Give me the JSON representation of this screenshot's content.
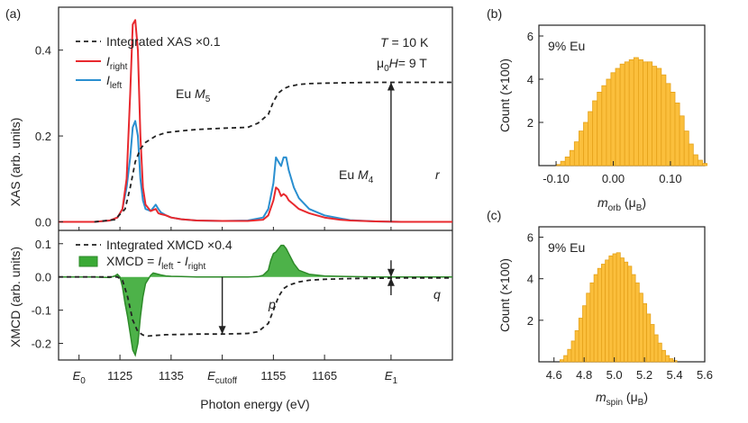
{
  "colors": {
    "right": "#e8292e",
    "left": "#2a8fd0",
    "xmcd": "#3aaa35",
    "hist": "#fbbf3c",
    "hist_edge": "#e5a21a",
    "dash": "#222222"
  },
  "chart_data": [
    {
      "panel": "(a)",
      "type": "line",
      "xlabel": "Photon energy (eV)",
      "xlim": [
        1113,
        1190
      ],
      "x_ticks": [
        {
          "x": 1117,
          "label": "E",
          "sub": "0"
        },
        {
          "x": 1125,
          "label": "1125",
          "sub": ""
        },
        {
          "x": 1135,
          "label": "1135",
          "sub": ""
        },
        {
          "x": 1145,
          "label": "E",
          "sub": "cutoff"
        },
        {
          "x": 1155,
          "label": "1155",
          "sub": ""
        },
        {
          "x": 1165,
          "label": "1165",
          "sub": ""
        },
        {
          "x": 1178,
          "label": "E",
          "sub": "1"
        }
      ],
      "top": {
        "ylabel": "XAS (arb. units)",
        "ylim": [
          -0.02,
          0.5
        ],
        "y_ticks": [
          "0.0",
          "0.2",
          "0.4"
        ],
        "y_tick_values": [
          0,
          0.2,
          0.4
        ],
        "legend": [
          {
            "label": "Integrated XAS ×0.1",
            "sub": "",
            "style": "dash"
          },
          {
            "label": "I",
            "sub": "right",
            "style": "right"
          },
          {
            "label": "I",
            "sub": "left",
            "style": "left"
          }
        ],
        "annotations": {
          "t1": "T",
          "t2": " = 10 K",
          "h1": "μ",
          "h_sub": "0",
          "h2": "H",
          "h3": "= 9 T",
          "m5_text": "Eu ",
          "m5_sym": "M",
          "m5_sub": "5",
          "m4_text": "Eu ",
          "m4_sym": "M",
          "m4_sub": "4",
          "r": "r"
        },
        "series": [
          {
            "style": "right",
            "x": [
              1113,
              1120,
              1123,
              1124.5,
              1125.5,
              1126.3,
              1127,
              1127.5,
              1128,
              1128.5,
              1129,
              1129.5,
              1130,
              1131,
              1132,
              1132.5,
              1133,
              1134,
              1135,
              1137,
              1140,
              1145,
              1150,
              1153,
              1154,
              1155,
              1155.5,
              1156,
              1156.5,
              1157,
              1157.5,
              1158,
              1159,
              1160,
              1162,
              1165,
              1168,
              1170,
              1175,
              1180,
              1190
            ],
            "y": [
              0,
              0,
              0.003,
              0.01,
              0.03,
              0.1,
              0.3,
              0.46,
              0.47,
              0.4,
              0.2,
              0.08,
              0.04,
              0.025,
              0.03,
              0.02,
              0.018,
              0.015,
              0.01,
              0.006,
              0.003,
              0.002,
              0.002,
              0.005,
              0.015,
              0.05,
              0.08,
              0.075,
              0.06,
              0.065,
              0.06,
              0.05,
              0.04,
              0.03,
              0.02,
              0.01,
              0.005,
              0.003,
              0.001,
              0,
              0
            ]
          },
          {
            "style": "left",
            "x": [
              1113,
              1120,
              1123,
              1124.5,
              1125.5,
              1126.3,
              1127,
              1127.5,
              1128,
              1128.5,
              1129,
              1129.5,
              1130,
              1131,
              1132,
              1132.5,
              1133,
              1134,
              1135,
              1137,
              1140,
              1145,
              1150,
              1153,
              1154,
              1155,
              1155.5,
              1156,
              1156.5,
              1157,
              1157.5,
              1158,
              1159,
              1160,
              1162,
              1165,
              1168,
              1170,
              1175,
              1180,
              1190
            ],
            "y": [
              0,
              0,
              0.003,
              0.01,
              0.03,
              0.08,
              0.15,
              0.22,
              0.235,
              0.2,
              0.1,
              0.05,
              0.03,
              0.025,
              0.04,
              0.03,
              0.022,
              0.015,
              0.01,
              0.006,
              0.003,
              0.002,
              0.003,
              0.01,
              0.03,
              0.09,
              0.15,
              0.14,
              0.13,
              0.15,
              0.15,
              0.12,
              0.08,
              0.055,
              0.03,
              0.015,
              0.008,
              0.004,
              0.001,
              0,
              0
            ]
          },
          {
            "style": "dash",
            "x": [
              1120,
              1124,
              1126,
              1127,
              1128,
              1129,
              1130,
              1132,
              1134,
              1137,
              1140,
              1145,
              1150,
              1152,
              1154,
              1155,
              1156,
              1157,
              1158,
              1160,
              1162,
              1165,
              1170,
              1175,
              1180,
              1190
            ],
            "y": [
              0,
              0.005,
              0.03,
              0.08,
              0.14,
              0.17,
              0.185,
              0.2,
              0.208,
              0.212,
              0.215,
              0.218,
              0.22,
              0.23,
              0.25,
              0.28,
              0.3,
              0.31,
              0.315,
              0.32,
              0.322,
              0.323,
              0.324,
              0.325,
              0.325,
              0.325
            ]
          }
        ]
      },
      "bottom": {
        "ylabel": "XMCD (arb. units)",
        "ylim": [
          -0.25,
          0.14
        ],
        "y_ticks": [
          "0.1",
          "0.0",
          "-0.1",
          "-0.2"
        ],
        "y_tick_values": [
          0.1,
          0,
          -0.1,
          -0.2
        ],
        "legend": [
          {
            "label": "Integrated XMCD ×0.4",
            "style": "dash"
          },
          {
            "label": "XMCD = ",
            "l1": "I",
            "s1": "left",
            "mid": " - ",
            "l2": "I",
            "s2": "right",
            "style": "fill"
          }
        ],
        "annotations": {
          "p": "p",
          "q": "q"
        },
        "series": [
          {
            "style": "fill",
            "x": [
              1113,
              1120,
              1123,
              1124,
              1124.5,
              1125,
              1125.5,
              1126,
              1126.5,
              1127,
              1127.5,
              1128,
              1128.5,
              1129,
              1129.5,
              1130,
              1131,
              1131.5,
              1132,
              1133,
              1134,
              1135,
              1137,
              1140,
              1145,
              1150,
              1152,
              1153,
              1154,
              1154.5,
              1155,
              1155.5,
              1156,
              1156.5,
              1157,
              1157.5,
              1158,
              1159,
              1160,
              1162,
              1165,
              1170,
              1175,
              1180,
              1190
            ],
            "y": [
              0,
              0,
              -0.002,
              0.003,
              0.008,
              0.0,
              -0.03,
              -0.08,
              -0.12,
              -0.17,
              -0.22,
              -0.235,
              -0.2,
              -0.12,
              -0.06,
              -0.02,
              0.005,
              0.012,
              0.01,
              0.006,
              0.003,
              0.002,
              0.001,
              0,
              0,
              0,
              0.001,
              0.005,
              0.02,
              0.05,
              0.07,
              0.075,
              0.085,
              0.095,
              0.095,
              0.085,
              0.07,
              0.04,
              0.02,
              0.008,
              0.003,
              0.001,
              0,
              0,
              0
            ]
          },
          {
            "style": "dash",
            "x": [
              1113,
              1123,
              1124.5,
              1125.5,
              1126.5,
              1127.5,
              1128.5,
              1129.5,
              1130.5,
              1132,
              1134,
              1137,
              1140,
              1145,
              1150,
              1152,
              1154,
              1155,
              1156,
              1157,
              1158,
              1160,
              1162,
              1165,
              1170,
              1175,
              1180,
              1190
            ],
            "y": [
              0,
              0,
              0,
              -0.01,
              -0.06,
              -0.13,
              -0.165,
              -0.175,
              -0.178,
              -0.176,
              -0.174,
              -0.173,
              -0.172,
              -0.172,
              -0.17,
              -0.165,
              -0.14,
              -0.1,
              -0.06,
              -0.035,
              -0.025,
              -0.015,
              -0.01,
              -0.007,
              -0.005,
              -0.004,
              -0.003,
              -0.003
            ]
          }
        ]
      }
    },
    {
      "panel": "(b)",
      "type": "bar",
      "ylabel": "Count (×100)",
      "xlabel": "m",
      "xlabel_sub": "orb",
      "xlabel_unit": " (μ",
      "xlabel_unit_sub": "B",
      "xlabel_end": ")",
      "note": "9% Eu",
      "xlim": [
        -0.13,
        0.16
      ],
      "ylim": [
        0,
        6.5
      ],
      "x_ticks": [
        "-0.10",
        "0.00",
        "0.10"
      ],
      "x_tick_values": [
        -0.1,
        0.0,
        0.1
      ],
      "y_ticks": [
        "2",
        "4",
        "6"
      ],
      "y_tick_values": [
        2,
        4,
        6
      ],
      "bin_start": -0.1,
      "bin_width": 0.008,
      "values": [
        0.05,
        0.2,
        0.4,
        0.7,
        1.1,
        1.6,
        2.0,
        2.5,
        3.0,
        3.4,
        3.7,
        4.0,
        4.3,
        4.5,
        4.7,
        4.8,
        4.9,
        5.0,
        4.9,
        4.8,
        4.8,
        4.6,
        4.5,
        4.2,
        3.8,
        3.4,
        2.9,
        2.3,
        1.6,
        1.0,
        0.5,
        0.25,
        0.1
      ]
    },
    {
      "panel": "(c)",
      "type": "bar",
      "ylabel": "Count (×100)",
      "xlabel": "m",
      "xlabel_sub": "spin",
      "xlabel_unit": " (μ",
      "xlabel_unit_sub": "B",
      "xlabel_end": ")",
      "note": "9% Eu",
      "xlim": [
        4.5,
        5.6
      ],
      "ylim": [
        0,
        6.5
      ],
      "x_ticks": [
        "4.6",
        "4.8",
        "5.0",
        "5.2",
        "5.4",
        "5.6"
      ],
      "x_tick_values": [
        4.6,
        4.8,
        5.0,
        5.2,
        5.4,
        5.6
      ],
      "y_ticks": [
        "2",
        "4",
        "6"
      ],
      "y_tick_values": [
        2,
        4,
        6
      ],
      "bin_start": 4.64,
      "bin_width": 0.025,
      "values": [
        0.1,
        0.3,
        0.6,
        1.0,
        1.5,
        2.1,
        2.7,
        3.3,
        3.8,
        4.2,
        4.5,
        4.7,
        4.9,
        5.1,
        5.2,
        5.25,
        5.0,
        4.8,
        4.6,
        4.2,
        3.8,
        3.3,
        2.8,
        2.3,
        1.8,
        1.3,
        0.9,
        0.55,
        0.3,
        0.15,
        0.06
      ]
    }
  ]
}
